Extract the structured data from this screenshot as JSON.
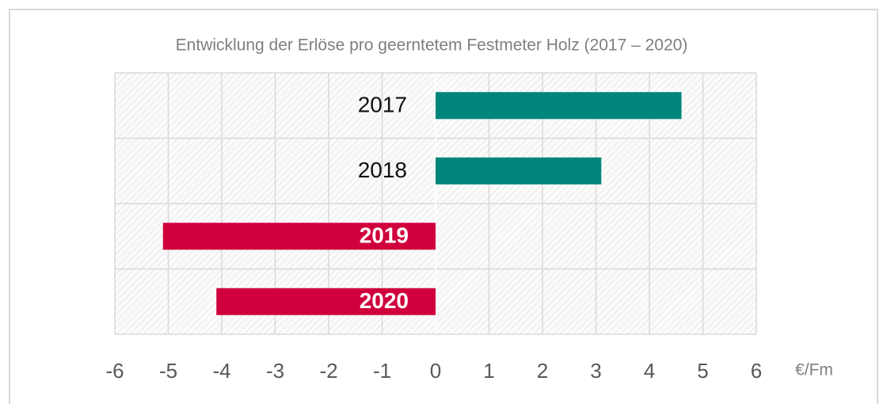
{
  "chart_data": {
    "type": "barh",
    "title": "Entwicklung der Erlöse pro geerntetem Festmeter Holz (2017 – 2020)",
    "categories": [
      "2017",
      "2018",
      "2019",
      "2020"
    ],
    "values": [
      4.6,
      3.1,
      -5.1,
      -4.1
    ],
    "colors": [
      "#00857a",
      "#00857a",
      "#d0003c",
      "#d0003c"
    ],
    "xlabel": "€/Fm",
    "xlim": [
      -6,
      6
    ],
    "xticks": [
      -6,
      -5,
      -4,
      -3,
      -2,
      -1,
      0,
      1,
      2,
      3,
      4,
      5,
      6
    ],
    "grid": true
  }
}
